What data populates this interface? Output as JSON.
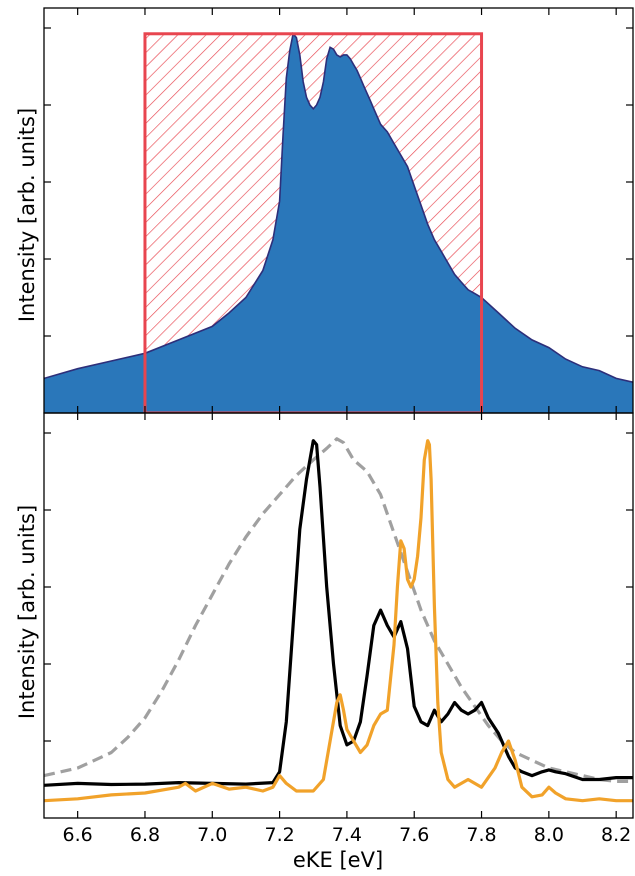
{
  "chart_data": [
    {
      "type": "area",
      "ylabel": "Intensity [arb. units]",
      "xlim": [
        6.5,
        8.25
      ],
      "ylim": [
        0,
        1.0
      ],
      "colors": {
        "fill": "#2a77ba",
        "edge": "#2d2f7a",
        "window": "#e8454f"
      },
      "window": {
        "x": [
          6.8,
          7.8
        ],
        "y": [
          0,
          0.985
        ]
      },
      "series": [
        {
          "x": [
            6.5,
            6.6,
            6.7,
            6.8,
            6.9,
            7.0,
            7.05,
            7.1,
            7.15,
            7.18,
            7.2,
            7.21,
            7.22,
            7.23,
            7.24,
            7.25,
            7.26,
            7.27,
            7.28,
            7.29,
            7.3,
            7.31,
            7.32,
            7.33,
            7.34,
            7.35,
            7.36,
            7.37,
            7.38,
            7.39,
            7.4,
            7.41,
            7.42,
            7.43,
            7.44,
            7.45,
            7.46,
            7.47,
            7.48,
            7.49,
            7.5,
            7.52,
            7.54,
            7.56,
            7.58,
            7.6,
            7.62,
            7.64,
            7.66,
            7.68,
            7.7,
            7.72,
            7.74,
            7.76,
            7.78,
            7.8,
            7.85,
            7.9,
            7.95,
            8.0,
            8.05,
            8.1,
            8.15,
            8.2,
            8.25
          ],
          "y": [
            0.09,
            0.115,
            0.135,
            0.155,
            0.19,
            0.225,
            0.26,
            0.3,
            0.37,
            0.45,
            0.55,
            0.72,
            0.87,
            0.94,
            0.985,
            0.975,
            0.93,
            0.86,
            0.82,
            0.8,
            0.79,
            0.8,
            0.82,
            0.86,
            0.92,
            0.95,
            0.945,
            0.93,
            0.925,
            0.93,
            0.93,
            0.92,
            0.905,
            0.89,
            0.87,
            0.85,
            0.83,
            0.81,
            0.79,
            0.77,
            0.75,
            0.73,
            0.7,
            0.67,
            0.64,
            0.59,
            0.54,
            0.49,
            0.45,
            0.42,
            0.39,
            0.36,
            0.34,
            0.32,
            0.31,
            0.3,
            0.26,
            0.22,
            0.19,
            0.17,
            0.14,
            0.12,
            0.11,
            0.09,
            0.08
          ]
        }
      ]
    },
    {
      "type": "line",
      "xlabel": "eKE [eV]",
      "ylabel": "Intensity [arb. units]",
      "xlim": [
        6.5,
        8.25
      ],
      "ylim": [
        0,
        1.0
      ],
      "xticks": [
        "6.6",
        "6.8",
        "7.0",
        "7.2",
        "7.4",
        "7.6",
        "7.8",
        "8.0",
        "8.2"
      ],
      "series": [
        {
          "style": "solid",
          "color": "#000000",
          "x": [
            6.5,
            6.6,
            6.7,
            6.8,
            6.9,
            7.0,
            7.1,
            7.18,
            7.2,
            7.22,
            7.24,
            7.26,
            7.28,
            7.3,
            7.31,
            7.32,
            7.34,
            7.36,
            7.38,
            7.4,
            7.42,
            7.44,
            7.46,
            7.48,
            7.5,
            7.52,
            7.54,
            7.56,
            7.58,
            7.6,
            7.62,
            7.64,
            7.66,
            7.68,
            7.7,
            7.72,
            7.74,
            7.76,
            7.78,
            7.8,
            7.82,
            7.85,
            7.88,
            7.9,
            7.92,
            7.95,
            7.98,
            8.0,
            8.02,
            8.05,
            8.1,
            8.15,
            8.2,
            8.25
          ],
          "y": [
            0.085,
            0.09,
            0.087,
            0.088,
            0.092,
            0.09,
            0.088,
            0.092,
            0.12,
            0.25,
            0.5,
            0.75,
            0.88,
            0.98,
            0.97,
            0.86,
            0.6,
            0.4,
            0.24,
            0.19,
            0.2,
            0.25,
            0.37,
            0.5,
            0.54,
            0.5,
            0.47,
            0.51,
            0.44,
            0.29,
            0.25,
            0.24,
            0.28,
            0.25,
            0.27,
            0.3,
            0.28,
            0.27,
            0.28,
            0.3,
            0.26,
            0.22,
            0.16,
            0.13,
            0.12,
            0.11,
            0.12,
            0.125,
            0.12,
            0.115,
            0.1,
            0.1,
            0.105,
            0.105
          ]
        },
        {
          "style": "solid",
          "color": "#f1a22a",
          "x": [
            6.5,
            6.6,
            6.7,
            6.8,
            6.9,
            6.92,
            6.95,
            7.0,
            7.05,
            7.1,
            7.15,
            7.18,
            7.2,
            7.22,
            7.25,
            7.3,
            7.33,
            7.35,
            7.37,
            7.38,
            7.39,
            7.4,
            7.42,
            7.44,
            7.46,
            7.48,
            7.5,
            7.52,
            7.54,
            7.55,
            7.56,
            7.57,
            7.58,
            7.59,
            7.6,
            7.61,
            7.62,
            7.63,
            7.64,
            7.645,
            7.65,
            7.66,
            7.67,
            7.68,
            7.7,
            7.72,
            7.74,
            7.76,
            7.8,
            7.84,
            7.86,
            7.88,
            7.9,
            7.92,
            7.95,
            7.98,
            8.0,
            8.02,
            8.05,
            8.1,
            8.15,
            8.2,
            8.25
          ],
          "y": [
            0.045,
            0.05,
            0.06,
            0.065,
            0.08,
            0.09,
            0.07,
            0.09,
            0.075,
            0.08,
            0.07,
            0.08,
            0.11,
            0.09,
            0.07,
            0.07,
            0.1,
            0.2,
            0.3,
            0.32,
            0.28,
            0.23,
            0.2,
            0.17,
            0.19,
            0.24,
            0.27,
            0.28,
            0.45,
            0.6,
            0.72,
            0.7,
            0.62,
            0.6,
            0.62,
            0.68,
            0.78,
            0.93,
            0.98,
            0.97,
            0.88,
            0.55,
            0.3,
            0.17,
            0.1,
            0.08,
            0.09,
            0.1,
            0.08,
            0.13,
            0.17,
            0.2,
            0.15,
            0.08,
            0.055,
            0.06,
            0.08,
            0.065,
            0.05,
            0.045,
            0.05,
            0.045,
            0.045
          ]
        },
        {
          "style": "dashed",
          "color": "#a0a0a0",
          "x": [
            6.5,
            6.55,
            6.6,
            6.65,
            6.7,
            6.75,
            6.8,
            6.85,
            6.9,
            6.95,
            7.0,
            7.05,
            7.1,
            7.15,
            7.2,
            7.25,
            7.3,
            7.34,
            7.37,
            7.39,
            7.42,
            7.46,
            7.5,
            7.54,
            7.58,
            7.62,
            7.66,
            7.7,
            7.74,
            7.78,
            7.82,
            7.86,
            7.9,
            7.95,
            8.0,
            8.05,
            8.1,
            8.15,
            8.2,
            8.25
          ],
          "y": [
            0.11,
            0.12,
            0.13,
            0.15,
            0.17,
            0.21,
            0.26,
            0.33,
            0.41,
            0.5,
            0.58,
            0.66,
            0.73,
            0.79,
            0.84,
            0.89,
            0.93,
            0.96,
            0.985,
            0.975,
            0.93,
            0.9,
            0.84,
            0.74,
            0.64,
            0.54,
            0.46,
            0.4,
            0.34,
            0.29,
            0.24,
            0.2,
            0.17,
            0.15,
            0.13,
            0.12,
            0.11,
            0.1,
            0.095,
            0.095
          ]
        }
      ]
    }
  ]
}
